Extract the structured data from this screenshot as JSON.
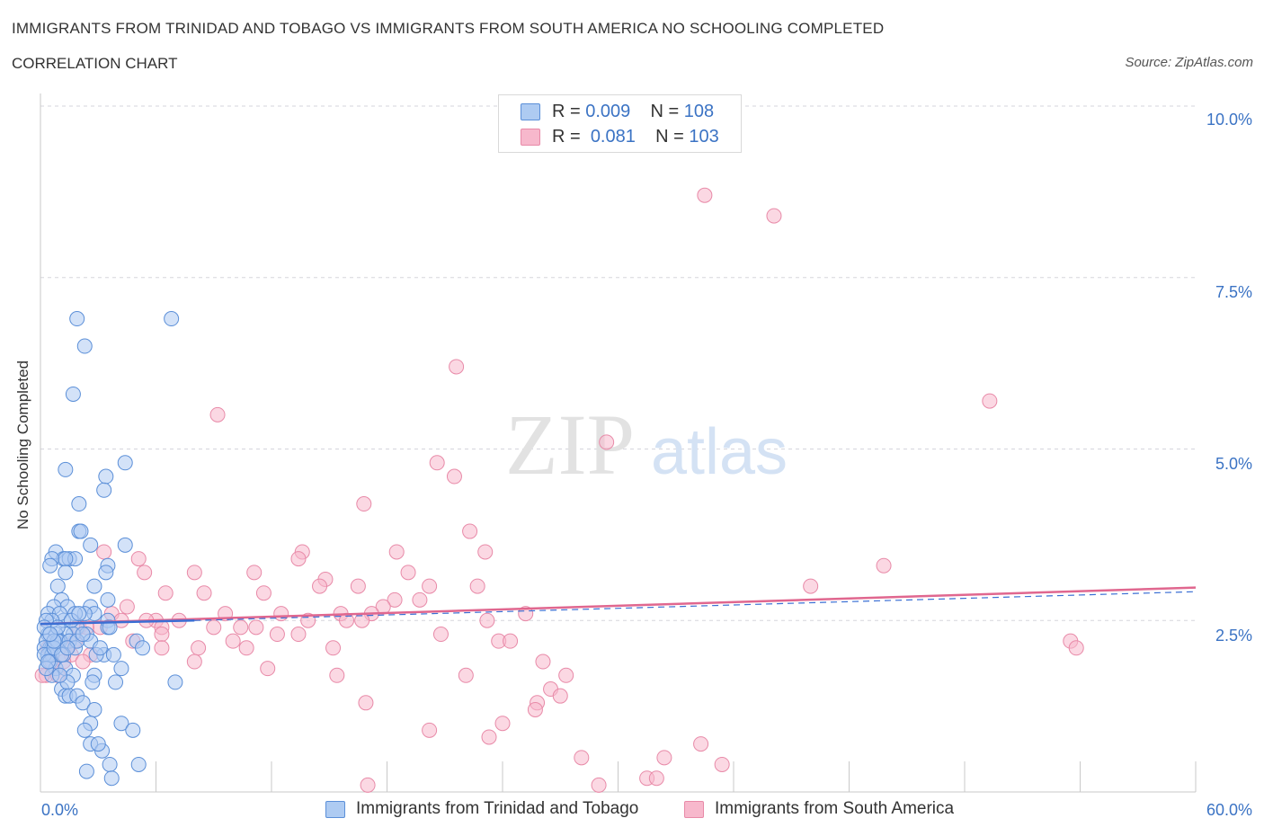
{
  "title": "IMMIGRANTS FROM TRINIDAD AND TOBAGO VS IMMIGRANTS FROM SOUTH AMERICA NO SCHOOLING COMPLETED",
  "subtitle": "CORRELATION CHART",
  "source": "Source: ZipAtlas.com",
  "watermark": {
    "zip": "ZIP",
    "atlas": "atlas"
  },
  "legend": {
    "rows": [
      {
        "r_label": "R =",
        "r_value": "0.009",
        "n_label": "N =",
        "n_value": "108"
      },
      {
        "r_label": "R =",
        "r_value": "0.081",
        "n_label": "N =",
        "n_value": "103"
      }
    ]
  },
  "colors": {
    "series1_fill": "#aecbf2",
    "series1_stroke": "#5b8fd8",
    "series1_line": "#3b6fd4",
    "series2_fill": "#f7b8cc",
    "series2_stroke": "#e88aa8",
    "series2_line": "#e0678f",
    "accent_text": "#3b73c4",
    "grid": "#d5d5dc"
  },
  "chart_data": {
    "type": "scatter",
    "title": "IMMIGRANTS FROM TRINIDAD AND TOBAGO VS IMMIGRANTS FROM SOUTH AMERICA NO SCHOOLING COMPLETED",
    "subtitle": "CORRELATION CHART",
    "xlabel": "",
    "ylabel": "No Schooling Completed",
    "xlim": [
      0,
      60
    ],
    "ylim": [
      0,
      10
    ],
    "x_tick_labels": [
      "0.0%",
      "60.0%"
    ],
    "y_ticks": [
      2.5,
      5.0,
      7.5,
      10.0
    ],
    "y_tick_labels": [
      "2.5%",
      "5.0%",
      "7.5%",
      "10.0%"
    ],
    "grid": true,
    "legend_position": "top-center",
    "series": [
      {
        "name": "Immigrants from Trinidad and Tobago",
        "R": 0.009,
        "N": 108,
        "trend": {
          "x": [
            0,
            8
          ],
          "y": [
            2.45,
            2.5
          ]
        },
        "trend_ext": {
          "x": [
            8,
            60
          ],
          "y": [
            2.5,
            2.92
          ]
        },
        "points": [
          [
            1.9,
            6.9
          ],
          [
            2.3,
            6.5
          ],
          [
            1.7,
            5.8
          ],
          [
            6.8,
            6.9
          ],
          [
            1.3,
            4.7
          ],
          [
            4.4,
            4.8
          ],
          [
            3.4,
            4.6
          ],
          [
            3.3,
            4.4
          ],
          [
            2.0,
            4.2
          ],
          [
            2.0,
            3.8
          ],
          [
            2.1,
            3.8
          ],
          [
            4.4,
            3.6
          ],
          [
            2.6,
            3.6
          ],
          [
            0.8,
            3.5
          ],
          [
            1.2,
            3.4
          ],
          [
            1.5,
            3.4
          ],
          [
            1.8,
            3.4
          ],
          [
            0.6,
            3.4
          ],
          [
            0.5,
            3.3
          ],
          [
            1.3,
            3.4
          ],
          [
            3.5,
            3.3
          ],
          [
            3.4,
            3.2
          ],
          [
            1.3,
            3.2
          ],
          [
            0.9,
            3.0
          ],
          [
            2.8,
            3.0
          ],
          [
            1.1,
            2.8
          ],
          [
            3.5,
            2.8
          ],
          [
            1.4,
            2.7
          ],
          [
            0.7,
            2.7
          ],
          [
            0.4,
            2.6
          ],
          [
            2.6,
            2.7
          ],
          [
            2.8,
            2.6
          ],
          [
            2.3,
            2.6
          ],
          [
            1.8,
            2.6
          ],
          [
            1.9,
            2.4
          ],
          [
            1.2,
            2.5
          ],
          [
            1.0,
            2.6
          ],
          [
            0.6,
            2.5
          ],
          [
            0.3,
            2.5
          ],
          [
            1.6,
            2.5
          ],
          [
            2.0,
            2.6
          ],
          [
            3.5,
            2.5
          ],
          [
            3.5,
            2.4
          ],
          [
            3.6,
            2.4
          ],
          [
            2.4,
            2.3
          ],
          [
            1.7,
            2.3
          ],
          [
            1.3,
            2.3
          ],
          [
            0.4,
            2.3
          ],
          [
            0.8,
            2.3
          ],
          [
            1.0,
            2.2
          ],
          [
            0.3,
            2.2
          ],
          [
            0.5,
            2.1
          ],
          [
            0.6,
            2.1
          ],
          [
            0.2,
            2.1
          ],
          [
            0.9,
            2.2
          ],
          [
            1.5,
            2.2
          ],
          [
            2.6,
            2.2
          ],
          [
            5.0,
            2.2
          ],
          [
            1.8,
            2.1
          ],
          [
            0.4,
            2.0
          ],
          [
            0.6,
            2.0
          ],
          [
            0.2,
            2.0
          ],
          [
            1.2,
            2.0
          ],
          [
            3.3,
            2.0
          ],
          [
            3.8,
            2.0
          ],
          [
            0.5,
            1.9
          ],
          [
            2.9,
            2.0
          ],
          [
            3.1,
            2.1
          ],
          [
            0.8,
            1.8
          ],
          [
            1.3,
            1.8
          ],
          [
            1.7,
            1.7
          ],
          [
            0.6,
            1.7
          ],
          [
            0.3,
            1.8
          ],
          [
            2.8,
            1.7
          ],
          [
            4.2,
            1.8
          ],
          [
            5.3,
            2.1
          ],
          [
            1.1,
            1.5
          ],
          [
            1.4,
            1.6
          ],
          [
            2.7,
            1.6
          ],
          [
            3.9,
            1.6
          ],
          [
            7.0,
            1.6
          ],
          [
            1.3,
            1.4
          ],
          [
            1.5,
            1.4
          ],
          [
            1.9,
            1.4
          ],
          [
            2.2,
            1.3
          ],
          [
            2.8,
            1.2
          ],
          [
            4.2,
            1.0
          ],
          [
            2.6,
            1.0
          ],
          [
            2.3,
            0.9
          ],
          [
            4.8,
            0.9
          ],
          [
            2.6,
            0.7
          ],
          [
            3.2,
            0.6
          ],
          [
            3.0,
            0.7
          ],
          [
            3.6,
            0.4
          ],
          [
            5.1,
            0.4
          ],
          [
            2.4,
            0.3
          ],
          [
            3.7,
            0.2
          ],
          [
            0.4,
            1.9
          ],
          [
            0.7,
            2.1
          ],
          [
            1.0,
            1.7
          ],
          [
            1.9,
            2.2
          ],
          [
            0.2,
            2.4
          ],
          [
            0.9,
            2.4
          ],
          [
            2.2,
            2.3
          ],
          [
            1.1,
            2.0
          ],
          [
            0.7,
            2.2
          ],
          [
            1.4,
            2.1
          ],
          [
            0.5,
            2.3
          ]
        ]
      },
      {
        "name": "Immigrants from South America",
        "R": 0.081,
        "N": 103,
        "trend": {
          "x": [
            0,
            60
          ],
          "y": [
            2.45,
            2.98
          ]
        },
        "points": [
          [
            34.5,
            8.7
          ],
          [
            38.1,
            8.4
          ],
          [
            21.6,
            6.2
          ],
          [
            49.3,
            5.7
          ],
          [
            9.2,
            5.5
          ],
          [
            29.4,
            5.1
          ],
          [
            20.6,
            4.8
          ],
          [
            21.5,
            4.6
          ],
          [
            16.8,
            4.2
          ],
          [
            22.3,
            3.8
          ],
          [
            13.6,
            3.5
          ],
          [
            18.5,
            3.5
          ],
          [
            23.1,
            3.5
          ],
          [
            3.3,
            3.5
          ],
          [
            13.4,
            3.4
          ],
          [
            5.1,
            3.4
          ],
          [
            43.8,
            3.3
          ],
          [
            8.0,
            3.2
          ],
          [
            11.1,
            3.2
          ],
          [
            19.1,
            3.2
          ],
          [
            5.4,
            3.2
          ],
          [
            14.8,
            3.1
          ],
          [
            40.0,
            3.0
          ],
          [
            14.5,
            3.0
          ],
          [
            16.5,
            3.0
          ],
          [
            20.2,
            3.0
          ],
          [
            22.7,
            3.0
          ],
          [
            6.5,
            2.9
          ],
          [
            8.5,
            2.9
          ],
          [
            11.6,
            2.9
          ],
          [
            18.4,
            2.8
          ],
          [
            19.7,
            2.8
          ],
          [
            17.8,
            2.7
          ],
          [
            4.5,
            2.7
          ],
          [
            9.6,
            2.6
          ],
          [
            12.5,
            2.6
          ],
          [
            15.6,
            2.6
          ],
          [
            17.2,
            2.6
          ],
          [
            25.2,
            2.6
          ],
          [
            3.7,
            2.6
          ],
          [
            7.2,
            2.5
          ],
          [
            6.0,
            2.5
          ],
          [
            13.9,
            2.5
          ],
          [
            15.9,
            2.5
          ],
          [
            16.7,
            2.5
          ],
          [
            5.5,
            2.5
          ],
          [
            4.2,
            2.5
          ],
          [
            23.2,
            2.5
          ],
          [
            6.3,
            2.4
          ],
          [
            3.1,
            2.4
          ],
          [
            2.0,
            2.4
          ],
          [
            9.0,
            2.4
          ],
          [
            10.4,
            2.4
          ],
          [
            11.2,
            2.4
          ],
          [
            12.3,
            2.3
          ],
          [
            13.4,
            2.3
          ],
          [
            6.3,
            2.3
          ],
          [
            4.8,
            2.2
          ],
          [
            20.8,
            2.3
          ],
          [
            23.8,
            2.2
          ],
          [
            24.4,
            2.2
          ],
          [
            10.0,
            2.2
          ],
          [
            10.7,
            2.1
          ],
          [
            15.2,
            2.1
          ],
          [
            6.3,
            2.1
          ],
          [
            8.2,
            2.1
          ],
          [
            1.4,
            2.1
          ],
          [
            1.6,
            2.0
          ],
          [
            2.6,
            2.0
          ],
          [
            0.6,
            2.0
          ],
          [
            1.2,
            1.9
          ],
          [
            2.2,
            1.9
          ],
          [
            8.0,
            1.9
          ],
          [
            26.1,
            1.9
          ],
          [
            11.8,
            1.8
          ],
          [
            15.4,
            1.7
          ],
          [
            22.1,
            1.7
          ],
          [
            27.3,
            1.7
          ],
          [
            0.3,
            1.7
          ],
          [
            0.9,
            1.7
          ],
          [
            0.1,
            1.7
          ],
          [
            26.5,
            1.5
          ],
          [
            25.8,
            1.3
          ],
          [
            27.0,
            1.4
          ],
          [
            16.9,
            1.3
          ],
          [
            25.7,
            1.2
          ],
          [
            20.2,
            0.9
          ],
          [
            24.0,
            1.0
          ],
          [
            23.3,
            0.8
          ],
          [
            28.1,
            0.5
          ],
          [
            32.4,
            0.5
          ],
          [
            34.3,
            0.7
          ],
          [
            35.4,
            0.4
          ],
          [
            31.5,
            0.2
          ],
          [
            29.0,
            0.1
          ],
          [
            32.0,
            0.2
          ],
          [
            17.0,
            0.1
          ],
          [
            53.5,
            2.2
          ],
          [
            53.8,
            2.1
          ],
          [
            0.4,
            2.1
          ],
          [
            0.6,
            1.9
          ],
          [
            1.8,
            2.2
          ],
          [
            2.4,
            2.4
          ]
        ]
      }
    ]
  },
  "bottom_legend": [
    {
      "label": "Immigrants from Trinidad and Tobago"
    },
    {
      "label": "Immigrants from South America"
    }
  ]
}
